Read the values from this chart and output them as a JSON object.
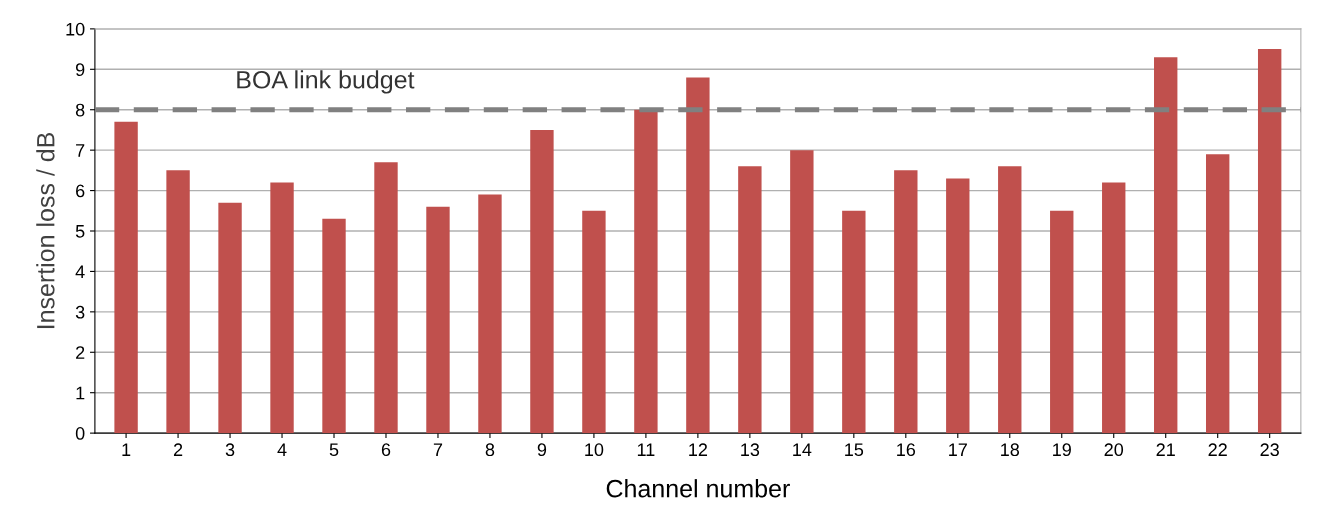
{
  "chart_data": {
    "type": "bar",
    "xlabel": "Channel number",
    "ylabel": "Insertion loss / dB",
    "categories": [
      "1",
      "2",
      "3",
      "4",
      "5",
      "6",
      "7",
      "8",
      "9",
      "10",
      "11",
      "12",
      "13",
      "14",
      "15",
      "16",
      "17",
      "18",
      "19",
      "20",
      "21",
      "22",
      "23"
    ],
    "values": [
      7.7,
      6.5,
      5.7,
      6.2,
      5.3,
      6.7,
      5.6,
      5.9,
      7.5,
      5.5,
      8.0,
      8.8,
      6.6,
      7.0,
      5.5,
      6.5,
      6.3,
      6.6,
      5.5,
      6.2,
      9.3,
      6.9,
      9.5
    ],
    "color": "#c0504d",
    "ylim": [
      0,
      10
    ],
    "yticks": [
      0,
      1,
      2,
      3,
      4,
      5,
      6,
      7,
      8,
      9,
      10
    ],
    "grid": "y",
    "ref_lines": [
      {
        "axis": "y",
        "value": 8,
        "label": "BOA link budget",
        "color": "#808080",
        "line_style": "dashed"
      }
    ]
  }
}
